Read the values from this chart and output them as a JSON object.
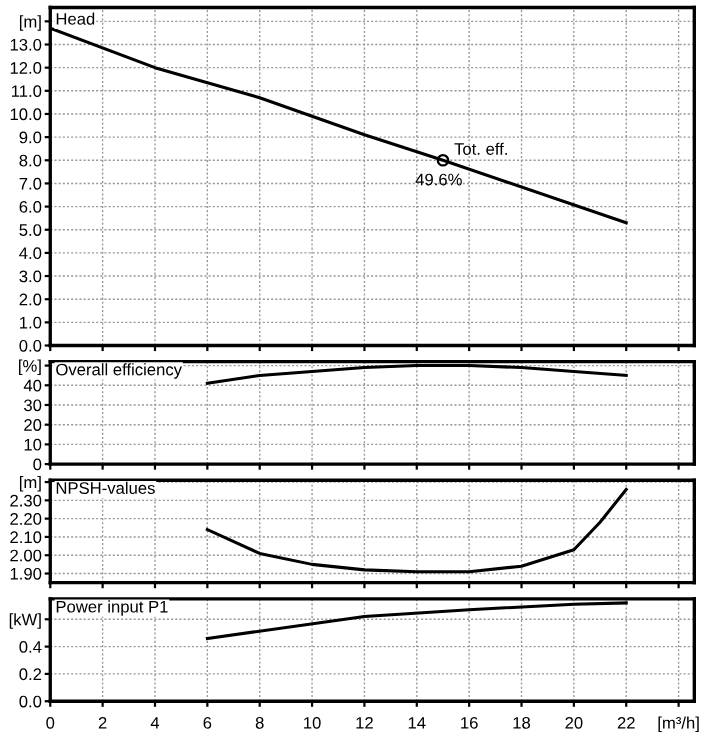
{
  "chart_data": [
    {
      "type": "line",
      "title": "Head",
      "x": [
        0,
        4,
        8,
        12,
        15,
        22
      ],
      "xlim": [
        0,
        24.6
      ],
      "xticks": [
        {
          "value": 0,
          "label": null
        },
        {
          "value": 2,
          "label": null
        },
        {
          "value": 4,
          "label": null
        },
        {
          "value": 6,
          "label": null
        },
        {
          "value": 8,
          "label": null
        },
        {
          "value": 10,
          "label": null
        },
        {
          "value": 12,
          "label": null
        },
        {
          "value": 14,
          "label": null
        },
        {
          "value": 16,
          "label": null
        },
        {
          "value": 18,
          "label": null
        },
        {
          "value": 20,
          "label": null
        },
        {
          "value": 22,
          "label": null
        },
        {
          "value": 24,
          "label": null
        }
      ],
      "ylim": [
        0,
        14.6
      ],
      "yticks": [
        {
          "value": 0,
          "label": "0.0"
        },
        {
          "value": 1,
          "label": "1.0"
        },
        {
          "value": 2,
          "label": "2.0"
        },
        {
          "value": 3,
          "label": "3.0"
        },
        {
          "value": 4,
          "label": "4.0"
        },
        {
          "value": 5,
          "label": "5.0"
        },
        {
          "value": 6,
          "label": "6.0"
        },
        {
          "value": 7,
          "label": "7.0"
        },
        {
          "value": 8,
          "label": "8.0"
        },
        {
          "value": 9,
          "label": "9.0"
        },
        {
          "value": 10,
          "label": "10.0"
        },
        {
          "value": 11,
          "label": "11.0"
        },
        {
          "value": 12,
          "label": "12.0"
        },
        {
          "value": 13,
          "label": "13.0"
        },
        {
          "value": 14,
          "label": "[m]"
        }
      ],
      "grid": true,
      "tick_labels": "y",
      "series": [
        {
          "color": "#000000",
          "values": [
            13.7,
            12.0,
            10.7,
            9.1,
            8.0,
            5.3
          ]
        },
        {
          "type": "scatter",
          "color": "#000000",
          "marker": "circle",
          "x": [
            15
          ],
          "values": [
            8.0
          ]
        }
      ],
      "annotations": [
        {
          "text": "Tot. eff.",
          "x": 15,
          "y": 8.0
        },
        {
          "text": "49.6%",
          "x": 15,
          "y": 8.0
        }
      ]
    },
    {
      "type": "line",
      "title": "Overall efficiency",
      "x": [
        6,
        8,
        10,
        12,
        14,
        16,
        18,
        20,
        22
      ],
      "xlim": [
        0,
        24.6
      ],
      "xticks": [
        {
          "value": 0,
          "label": null
        },
        {
          "value": 2,
          "label": null
        },
        {
          "value": 4,
          "label": null
        },
        {
          "value": 6,
          "label": null
        },
        {
          "value": 8,
          "label": null
        },
        {
          "value": 10,
          "label": null
        },
        {
          "value": 12,
          "label": null
        },
        {
          "value": 14,
          "label": null
        },
        {
          "value": 16,
          "label": null
        },
        {
          "value": 18,
          "label": null
        },
        {
          "value": 20,
          "label": null
        },
        {
          "value": 22,
          "label": null
        },
        {
          "value": 24,
          "label": null
        }
      ],
      "ylim": [
        0,
        52
      ],
      "yticks": [
        0,
        10,
        20,
        30,
        40,
        {
          "value": 50,
          "label": "[%]"
        }
      ],
      "grid": true,
      "tick_labels": "y",
      "series": [
        {
          "color": "#000000",
          "values": [
            41,
            45,
            47,
            49,
            50,
            50,
            49,
            47,
            45
          ]
        }
      ]
    },
    {
      "type": "line",
      "title": "NPSH-values",
      "x": [
        6,
        8,
        10,
        12,
        14,
        16,
        18,
        20,
        21,
        22
      ],
      "xlim": [
        0,
        24.6
      ],
      "xticks": [
        {
          "value": 0,
          "label": null
        },
        {
          "value": 2,
          "label": null
        },
        {
          "value": 4,
          "label": null
        },
        {
          "value": 6,
          "label": null
        },
        {
          "value": 8,
          "label": null
        },
        {
          "value": 10,
          "label": null
        },
        {
          "value": 12,
          "label": null
        },
        {
          "value": 14,
          "label": null
        },
        {
          "value": 16,
          "label": null
        },
        {
          "value": 18,
          "label": null
        },
        {
          "value": 20,
          "label": null
        },
        {
          "value": 22,
          "label": null
        },
        {
          "value": 24,
          "label": null
        }
      ],
      "ylim": [
        1.85,
        2.41
      ],
      "yticks": [
        {
          "value": 1.9,
          "label": "1.90"
        },
        {
          "value": 2.0,
          "label": "2.00"
        },
        {
          "value": 2.1,
          "label": "2.10"
        },
        {
          "value": 2.2,
          "label": "2.20"
        },
        {
          "value": 2.3,
          "label": "2.30"
        },
        {
          "value": 2.4,
          "label": "[m]"
        }
      ],
      "grid": true,
      "tick_labels": "y",
      "series": [
        {
          "color": "#000000",
          "values": [
            2.14,
            2.01,
            1.95,
            1.92,
            1.91,
            1.91,
            1.94,
            2.03,
            2.18,
            2.36
          ]
        }
      ]
    },
    {
      "type": "line",
      "title": "Power input P1",
      "x": [
        6,
        12,
        16,
        20,
        22
      ],
      "xlim": [
        0,
        24.6
      ],
      "xticks": [
        0,
        2,
        4,
        6,
        8,
        10,
        12,
        14,
        16,
        18,
        20,
        22,
        {
          "value": 24,
          "label": "[m³/h]"
        }
      ],
      "ylim": [
        0,
        0.75
      ],
      "yticks": [
        {
          "value": 0,
          "label": "0.0"
        },
        0.2,
        0.4,
        {
          "value": 0.6,
          "label": "[kW]"
        }
      ],
      "grid": true,
      "series": [
        {
          "color": "#000000",
          "values": [
            0.46,
            0.62,
            0.67,
            0.71,
            0.72
          ]
        }
      ]
    }
  ]
}
